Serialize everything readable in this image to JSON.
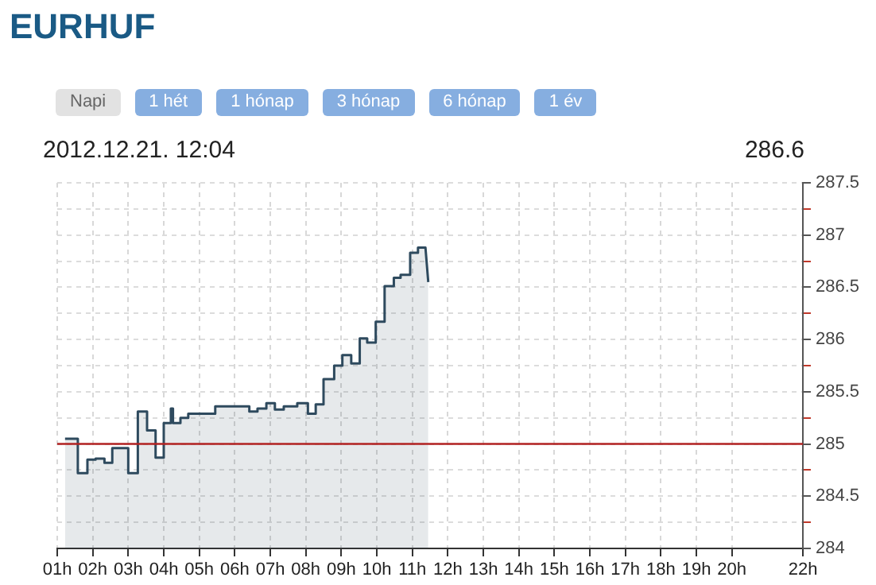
{
  "chart_data": {
    "type": "area",
    "title": "EURHUF",
    "annotations": [
      "2012.12.21. 12:04",
      "286.6",
      "Napi",
      "1 hét",
      "1 hónap",
      "3 hónap",
      "6 hónap",
      "1 év"
    ],
    "x": [
      1.22,
      1.58,
      1.58,
      1.85,
      1.85,
      2.08,
      2.08,
      2.33,
      2.33,
      2.55,
      2.55,
      3.0,
      3.0,
      3.27,
      3.27,
      3.53,
      3.53,
      3.77,
      3.77,
      4.0,
      4.0,
      4.2,
      4.2,
      4.26,
      4.26,
      4.47,
      4.47,
      4.69,
      4.69,
      5.45,
      5.45,
      6.41,
      6.41,
      6.64,
      6.64,
      6.89,
      6.89,
      7.13,
      7.13,
      7.38,
      7.38,
      7.76,
      7.76,
      8.06,
      8.06,
      8.28,
      8.28,
      8.5,
      8.5,
      8.8,
      8.8,
      9.03,
      9.03,
      9.28,
      9.28,
      9.52,
      9.52,
      9.73,
      9.73,
      9.97,
      9.97,
      10.22,
      10.22,
      10.48,
      10.48,
      10.67,
      10.67,
      10.94,
      10.94,
      11.16,
      11.16,
      11.37,
      11.45
    ],
    "series": [
      {
        "color": "#2e4a5e",
        "values": [
          285.05,
          285.05,
          284.72,
          284.72,
          284.85,
          284.85,
          284.86,
          284.86,
          284.82,
          284.82,
          284.96,
          284.96,
          284.72,
          284.72,
          285.31,
          285.31,
          285.13,
          285.13,
          284.87,
          284.87,
          285.2,
          285.2,
          285.34,
          285.34,
          285.2,
          285.2,
          285.25,
          285.25,
          285.29,
          285.29,
          285.36,
          285.36,
          285.31,
          285.31,
          285.34,
          285.34,
          285.39,
          285.39,
          285.33,
          285.33,
          285.36,
          285.36,
          285.39,
          285.39,
          285.29,
          285.29,
          285.38,
          285.38,
          285.62,
          285.62,
          285.75,
          285.75,
          285.85,
          285.85,
          285.77,
          285.77,
          286.01,
          286.01,
          285.97,
          285.97,
          286.17,
          286.17,
          286.51,
          286.51,
          286.59,
          286.59,
          286.62,
          286.62,
          286.83,
          286.83,
          286.88,
          286.88,
          286.55
        ]
      }
    ],
    "xlim": [
      1,
      22
    ],
    "xticks": [
      {
        "value": 1,
        "label": "01h"
      },
      {
        "value": 2,
        "label": "02h"
      },
      {
        "value": 3,
        "label": "03h"
      },
      {
        "value": 4,
        "label": "04h"
      },
      {
        "value": 5,
        "label": "05h"
      },
      {
        "value": 6,
        "label": "06h"
      },
      {
        "value": 7,
        "label": "07h"
      },
      {
        "value": 8,
        "label": "08h"
      },
      {
        "value": 9,
        "label": "09h"
      },
      {
        "value": 10,
        "label": "10h"
      },
      {
        "value": 11,
        "label": "11h"
      },
      {
        "value": 12,
        "label": "12h"
      },
      {
        "value": 13,
        "label": "13h"
      },
      {
        "value": 14,
        "label": "14h"
      },
      {
        "value": 15,
        "label": "15h"
      },
      {
        "value": 16,
        "label": "16h"
      },
      {
        "value": 17,
        "label": "17h"
      },
      {
        "value": 18,
        "label": "18h"
      },
      {
        "value": 19,
        "label": "19h"
      },
      {
        "value": 20,
        "label": "20h"
      },
      {
        "value": 22,
        "label": "22h"
      }
    ],
    "ylim": [
      284,
      287.5
    ],
    "yticks": [
      284,
      {
        "value": 284.25,
        "label": null
      },
      284.5,
      {
        "value": 284.75,
        "label": null
      },
      285,
      {
        "value": 285.25,
        "label": null
      },
      285.5,
      {
        "value": 285.75,
        "label": null
      },
      286,
      {
        "value": 286.25,
        "label": null
      },
      286.5,
      {
        "value": 286.75,
        "label": null
      },
      287,
      {
        "value": 287.25,
        "label": null
      },
      287.5
    ],
    "ref_lines": [
      {
        "axis": "y",
        "value": 285,
        "color": "#b22222"
      }
    ],
    "grid": true,
    "legend": false
  }
}
